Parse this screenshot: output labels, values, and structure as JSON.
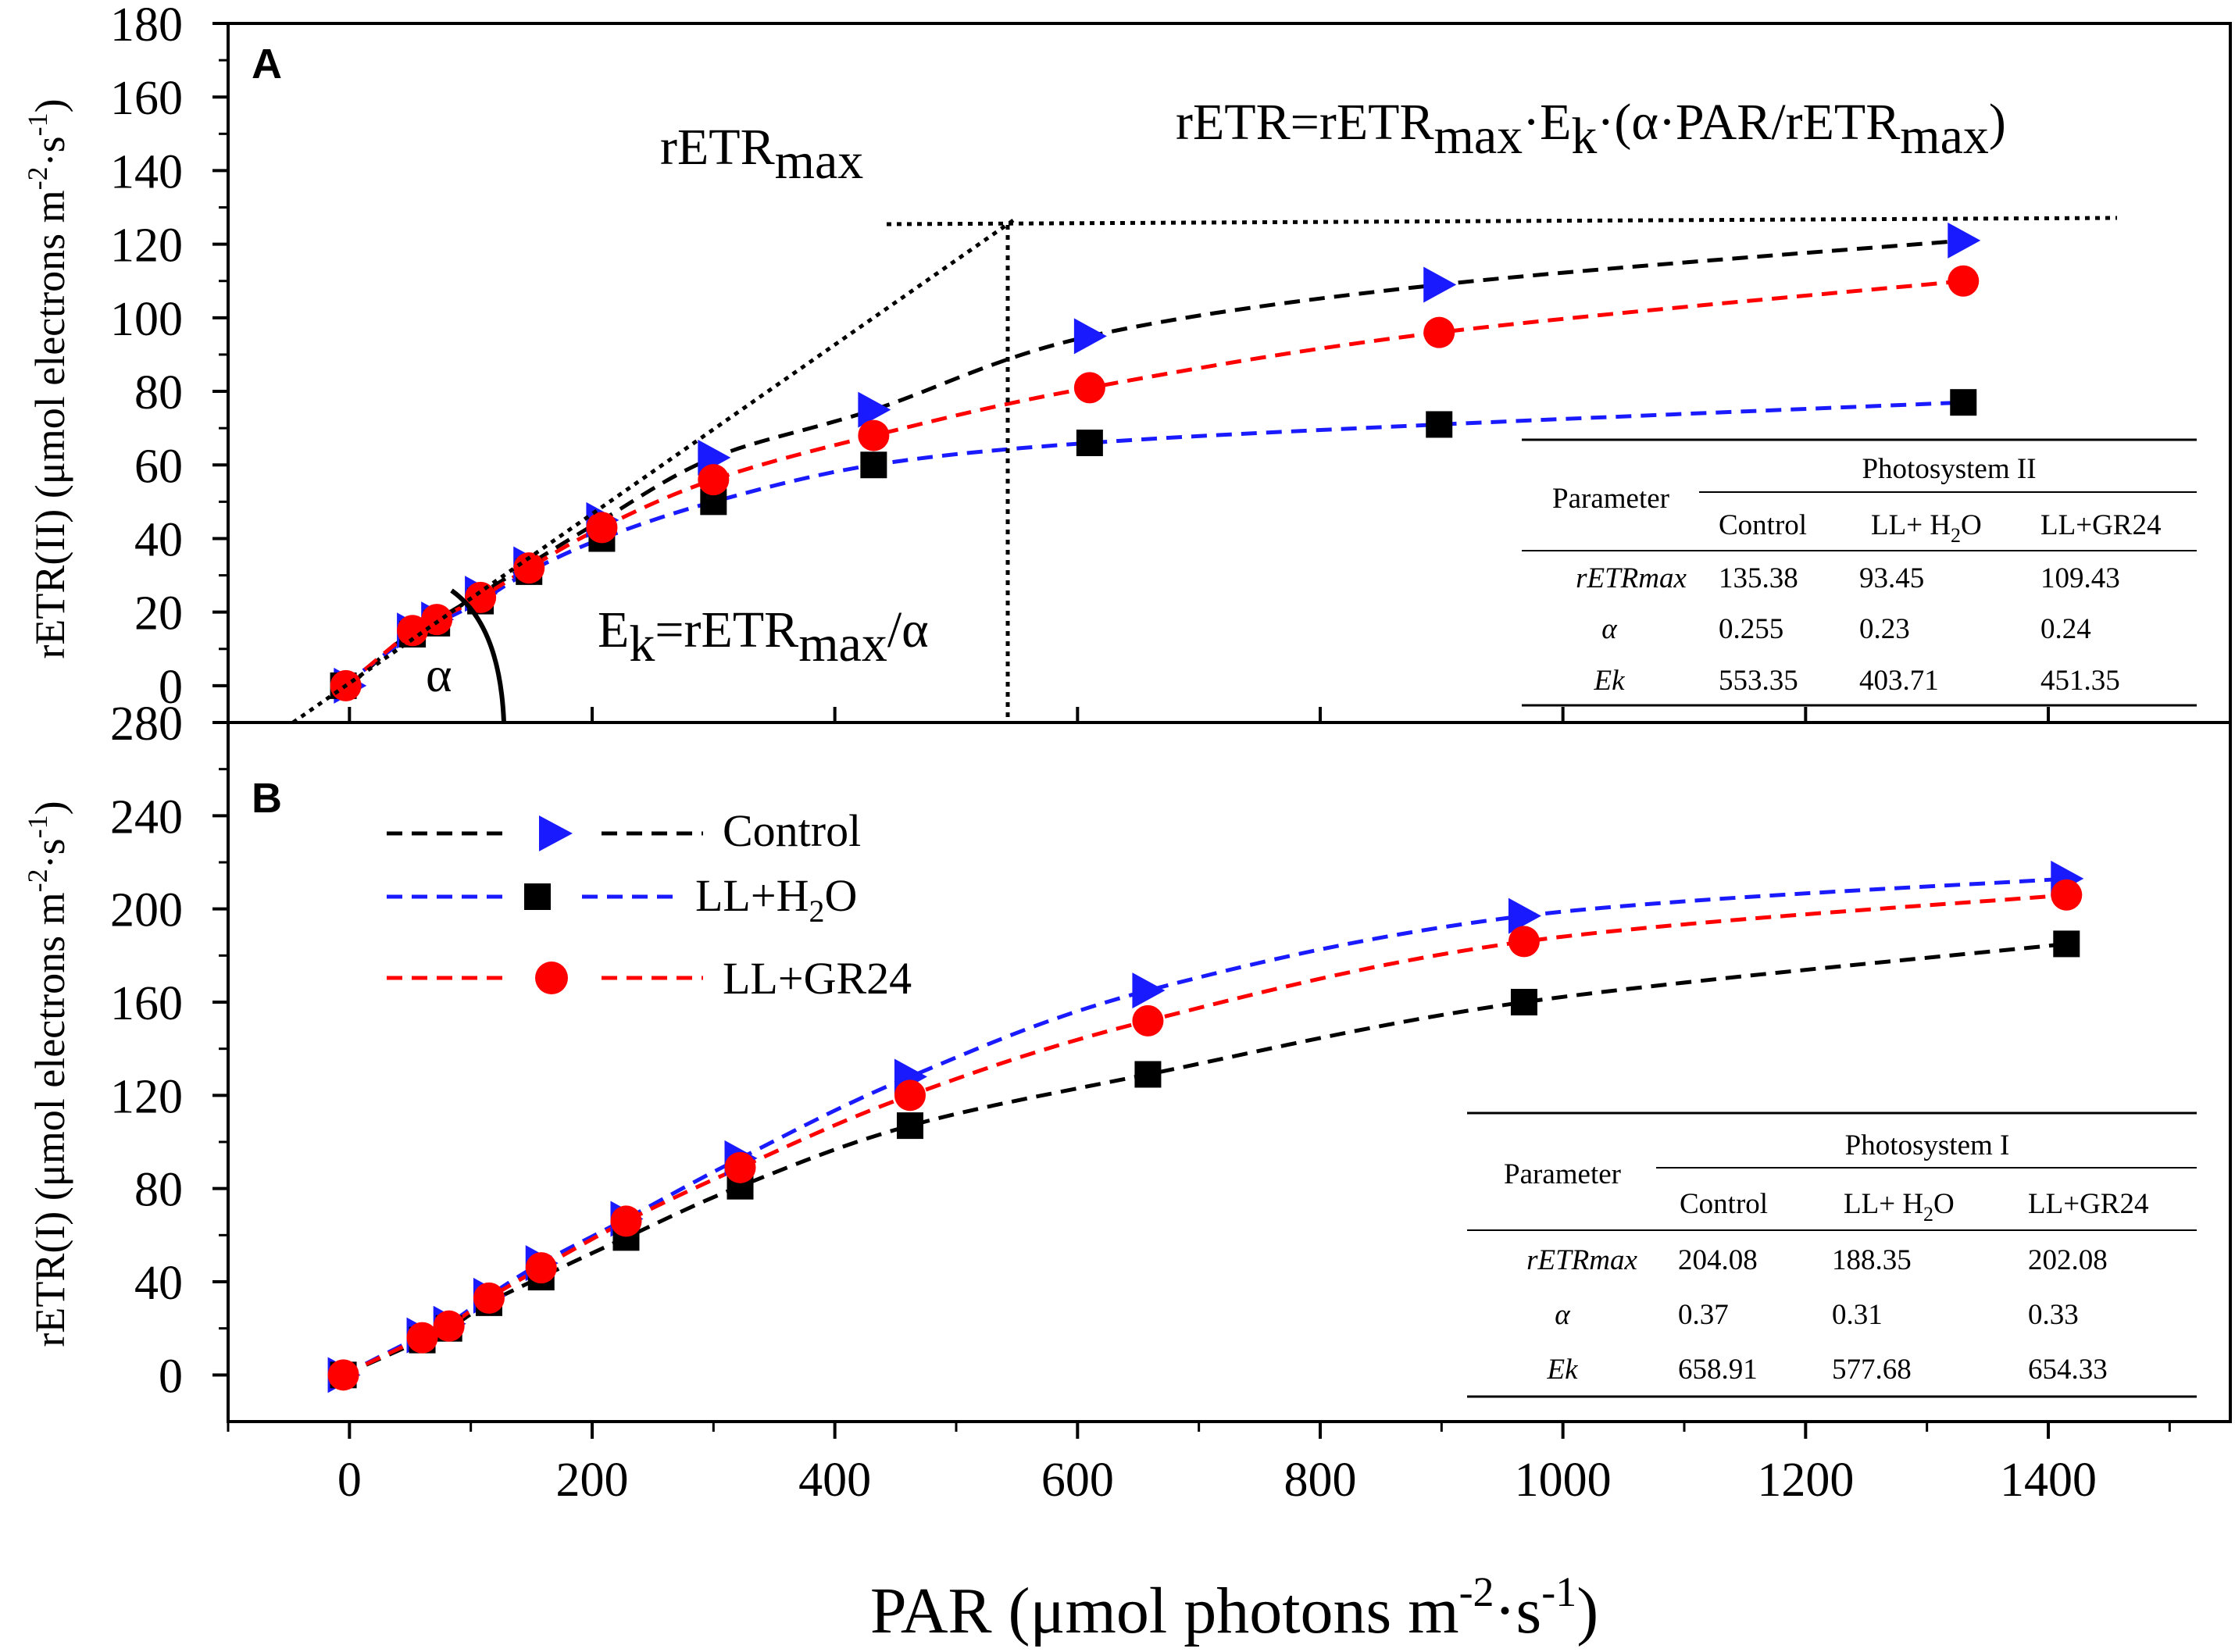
{
  "colors": {
    "control": "#1a1aff",
    "ll_h2o": "#000000",
    "ll_gr24": "#ff0000",
    "axis": "#000000"
  },
  "x_axis": {
    "label_main": "PAR (μmol photons m",
    "label_sup1": "-2",
    "label_dot": "·s",
    "label_sup2": "-1",
    "label_close": ")",
    "ticks": [
      "0",
      "200",
      "400",
      "600",
      "800",
      "1000",
      "1200",
      "1400"
    ],
    "range": [
      -100,
      1550
    ]
  },
  "chart_data": [
    {
      "type": "scatter",
      "panel": "A",
      "ylabel_main": "rETR(II) (μmol electrons m",
      "ylabel_sup1": "-2",
      "ylabel_dot": "·s",
      "ylabel_sup2": "-1",
      "ylabel_close": ")",
      "ylim": [
        -10,
        180
      ],
      "yticks": [
        "0",
        "20",
        "40",
        "60",
        "80",
        "100",
        "120",
        "140",
        "160",
        "180"
      ],
      "xlim": [
        -100,
        1550
      ],
      "series": [
        {
          "name": "Control",
          "marker": "triangle-right",
          "color": "#1a1aff",
          "fit_color": "#000000",
          "x": [
            0,
            52,
            72,
            108,
            148,
            208,
            300,
            432,
            610,
            898,
            1330
          ],
          "y": [
            0,
            15,
            18,
            25,
            33,
            45,
            62,
            75,
            95,
            109,
            121
          ]
        },
        {
          "name": "LL+H2O",
          "marker": "square",
          "color": "#000000",
          "fit_color": "#1a1aff",
          "x": [
            -5,
            52,
            72,
            108,
            148,
            208,
            300,
            432,
            610,
            898,
            1330
          ],
          "y": [
            0,
            14,
            17,
            23,
            31,
            40,
            50,
            60,
            66,
            71,
            77
          ]
        },
        {
          "name": "LL+GR24",
          "marker": "circle",
          "color": "#ff0000",
          "fit_color": "#ff0000",
          "x": [
            -3,
            52,
            72,
            108,
            148,
            208,
            300,
            432,
            610,
            898,
            1330
          ],
          "y": [
            0,
            15,
            18,
            24,
            32,
            43,
            56,
            68,
            81,
            96,
            110
          ]
        }
      ],
      "annotations": {
        "panel_label": "A",
        "rETRmax_label_base": "rETR",
        "rETRmax_label_sub": "max",
        "equation_part1": "rETR=rETR",
        "equation_sub1": "max",
        "equation_part2": "·E",
        "equation_sub2": "k",
        "equation_part3": "·(α·PAR/rETR",
        "equation_sub3": "max",
        "equation_part4": ")",
        "ek_part1": "E",
        "ek_sub1": "k",
        "ek_part2": "=rETR",
        "ek_sub2": "max",
        "ek_part3": "/α",
        "alpha_symbol": "α"
      },
      "table": {
        "param_header": "Parameter",
        "group_header": "Photosystem II",
        "columns": [
          "Control",
          "LL+ H2O",
          "LL+GR24"
        ],
        "rows": [
          {
            "name": "rETRmax",
            "values": [
              "135.38",
              "93.45",
              "109.43"
            ]
          },
          {
            "name": "α",
            "values": [
              "0.255",
              "0.23",
              "0.24"
            ]
          },
          {
            "name": "Ek",
            "values": [
              "553.35",
              "403.71",
              "451.35"
            ]
          }
        ]
      }
    },
    {
      "type": "scatter",
      "panel": "B",
      "ylabel_main": "rETR(I) (μmol electrons m",
      "ylabel_sup1": "-2",
      "ylabel_dot": "·s",
      "ylabel_sup2": "-1",
      "ylabel_close": ")",
      "ylim": [
        -20,
        280
      ],
      "yticks": [
        "0",
        "40",
        "80",
        "120",
        "160",
        "200",
        "240",
        "280"
      ],
      "xlim": [
        -100,
        1550
      ],
      "series": [
        {
          "name": "Control",
          "marker": "triangle-right",
          "color": "#1a1aff",
          "fit_color": "#1a1aff",
          "x": [
            -5,
            60,
            82,
            115,
            158,
            228,
            322,
            462,
            658,
            968,
            1415
          ],
          "y": [
            0,
            17,
            22,
            34,
            48,
            67,
            93,
            128,
            165,
            197,
            213
          ]
        },
        {
          "name": "LL+H2O",
          "marker": "square",
          "color": "#000000",
          "fit_color": "#000000",
          "x": [
            -5,
            60,
            82,
            115,
            158,
            228,
            322,
            462,
            658,
            968,
            1415
          ],
          "y": [
            0,
            15,
            20,
            31,
            42,
            59,
            81,
            107,
            129,
            160,
            185
          ]
        },
        {
          "name": "LL+GR24",
          "marker": "circle",
          "color": "#ff0000",
          "fit_color": "#ff0000",
          "x": [
            -5,
            60,
            82,
            115,
            158,
            228,
            322,
            462,
            658,
            968,
            1415
          ],
          "y": [
            0,
            16,
            21,
            33,
            46,
            66,
            89,
            120,
            152,
            186,
            206
          ]
        }
      ],
      "annotations": {
        "panel_label": "B"
      },
      "legend": {
        "position": "top-left",
        "entries": [
          {
            "label": "Control",
            "label_main": "Control",
            "label_sub": "",
            "label_rest": ""
          },
          {
            "label": "LL+H2O",
            "label_main": "LL+H",
            "label_sub": "2",
            "label_rest": "O"
          },
          {
            "label": "LL+GR24",
            "label_main": "LL+GR24",
            "label_sub": "",
            "label_rest": ""
          }
        ]
      },
      "table": {
        "param_header": "Parameter",
        "group_header": "Photosystem I",
        "columns": [
          "Control",
          "LL+ H2O",
          "LL+GR24"
        ],
        "rows": [
          {
            "name": "rETRmax",
            "values": [
              "204.08",
              "188.35",
              "202.08"
            ]
          },
          {
            "name": "α",
            "values": [
              "0.37",
              "0.31",
              "0.33"
            ]
          },
          {
            "name": "Ek",
            "values": [
              "658.91",
              "577.68",
              "654.33"
            ]
          }
        ]
      }
    }
  ]
}
